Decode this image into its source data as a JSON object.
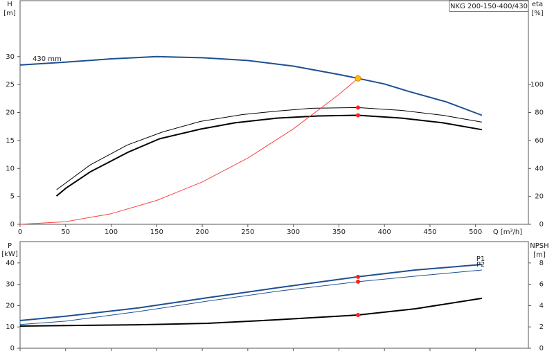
{
  "chart_data": [
    {
      "type": "line",
      "title": "NKG 200-150-400/430",
      "ylabel": "H",
      "yunit": "[m]",
      "y2label": "eta",
      "y2unit": "[%]",
      "xlabel": "Q [m³/h]",
      "xlim": [
        0,
        558
      ],
      "xticks": [
        0,
        50,
        100,
        150,
        200,
        250,
        300,
        350,
        400,
        450,
        500
      ],
      "ylim": [
        0,
        40
      ],
      "yticks": [
        0,
        5,
        10,
        15,
        20,
        25,
        30
      ],
      "y2lim": [
        0,
        160
      ],
      "y2ticks": [
        0,
        20,
        40,
        60,
        80,
        100
      ],
      "series": [
        {
          "name": "430 mm",
          "color": "#1e4f91",
          "width": 2,
          "label_at": "start",
          "x": [
            0,
            50,
            100,
            150,
            200,
            250,
            300,
            350,
            371,
            400,
            426,
            468,
            507
          ],
          "values": [
            28.5,
            29,
            29.6,
            30,
            29.8,
            29.3,
            28.3,
            26.8,
            26.1,
            25.1,
            23.8,
            21.9,
            19.5
          ]
        },
        {
          "color": "#000000",
          "width": 1,
          "axis": "y2",
          "x": [
            40,
            77,
            118,
            157,
            198,
            244,
            282,
            320,
            371,
            419,
            464,
            507
          ],
          "values": [
            24.7,
            42.5,
            56.8,
            66.2,
            73.6,
            78.5,
            81,
            83,
            83.5,
            81.5,
            78,
            73.1
          ]
        },
        {
          "color": "#000000",
          "width": 2,
          "axis": "y2",
          "x": [
            40,
            50,
            77,
            118,
            153,
            198,
            236,
            282,
            327,
            371,
            419,
            464,
            507
          ],
          "values": [
            20.2,
            25.7,
            37.5,
            51.4,
            61.2,
            68.1,
            72.6,
            76,
            77.5,
            78,
            76,
            72.6,
            67.7
          ]
        },
        {
          "color": "#ff4040",
          "width": 1,
          "x": [
            0,
            50,
            100,
            150,
            200,
            250,
            300,
            350,
            371
          ],
          "values": [
            0,
            0.47,
            1.9,
            4.27,
            7.58,
            11.85,
            17.07,
            23.23,
            26.1
          ]
        },
        {
          "color": "#ff2020",
          "style": "dot",
          "axis": "y2",
          "x": [
            371,
            371
          ],
          "values": [
            83.5,
            78
          ]
        },
        {
          "color": "#ffc000",
          "style": "dot",
          "x": [
            371
          ],
          "values": [
            26.1
          ]
        }
      ]
    },
    {
      "type": "line",
      "ylabel": "P",
      "yunit": "[kW]",
      "y2label": "NPSH",
      "y2unit": "[m]",
      "xlim": [
        0,
        558
      ],
      "xticks": [
        0,
        50,
        100,
        150,
        200,
        250,
        300,
        350,
        400,
        450,
        500
      ],
      "xtick_labels": false,
      "ylim": [
        0,
        50
      ],
      "yticks": [
        0,
        10,
        20,
        30,
        40
      ],
      "y2lim": [
        0,
        10
      ],
      "y2ticks": [
        0,
        2,
        4,
        6,
        8
      ],
      "series": [
        {
          "name": "P1",
          "color": "#1e4f91",
          "width": 2,
          "label_at": "end",
          "x": [
            0,
            50,
            130,
            206,
            282,
            371,
            434,
            507
          ],
          "values": [
            13,
            15,
            18.9,
            23.7,
            28.3,
            33.5,
            36.7,
            39.3
          ]
        },
        {
          "name": "P2",
          "color": "#1e4f91",
          "width": 1,
          "label_at": "end",
          "x": [
            0,
            50,
            130,
            206,
            282,
            371,
            434,
            507
          ],
          "values": [
            11.1,
            12.7,
            17.2,
            22.1,
            26.7,
            31.2,
            33.8,
            36.7
          ]
        },
        {
          "color": "#000000",
          "width": 2,
          "axis": "y2",
          "x": [
            0,
            130,
            206,
            282,
            371,
            434,
            507
          ],
          "values": [
            2.08,
            2.2,
            2.34,
            2.67,
            3.12,
            3.7,
            4.68
          ]
        },
        {
          "color": "#ff2020",
          "style": "dot",
          "x": [
            371,
            371
          ],
          "values": [
            33.5,
            31.2
          ]
        },
        {
          "color": "#ff2020",
          "style": "dot",
          "axis": "y2",
          "x": [
            371
          ],
          "values": [
            3.12
          ]
        }
      ]
    }
  ]
}
